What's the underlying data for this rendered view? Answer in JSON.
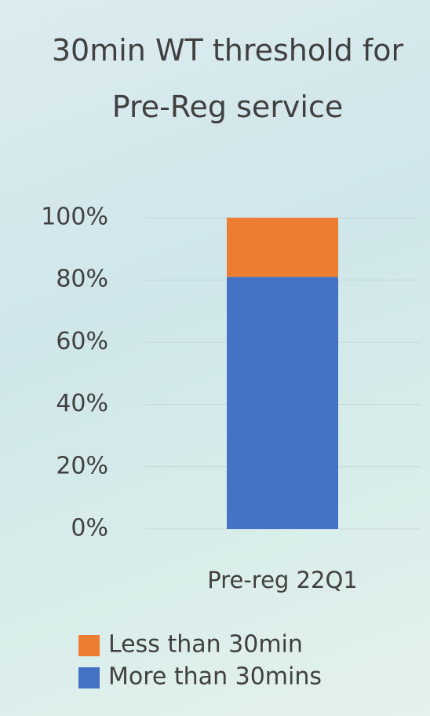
{
  "chart_data": {
    "type": "stacked-bar",
    "title": "30min WT threshold for Pre-Reg service",
    "categories": [
      "Pre-reg 22Q1"
    ],
    "series": [
      {
        "name": "More than 30mins",
        "color": "#4472c4",
        "values": [
          81
        ]
      },
      {
        "name": "Less than 30min",
        "color": "#ed7d31",
        "values": [
          19
        ]
      }
    ],
    "ylim": [
      0,
      100
    ],
    "yticks": [
      {
        "value": 0,
        "label": "0%"
      },
      {
        "value": 20,
        "label": "20%"
      },
      {
        "value": 40,
        "label": "40%"
      },
      {
        "value": 60,
        "label": "60%"
      },
      {
        "value": 80,
        "label": "80%"
      },
      {
        "value": 100,
        "label": "100%"
      }
    ],
    "grid": true,
    "legend": "bottom"
  }
}
